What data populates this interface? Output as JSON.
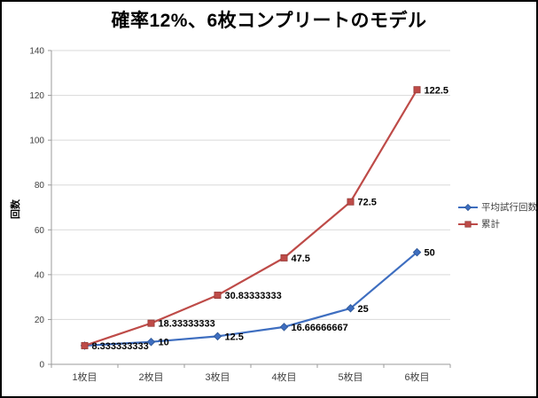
{
  "window": {
    "title": "確率12%、6枚コンプリートのモデル"
  },
  "chart_data": {
    "type": "line",
    "title": "確率12%、6枚コンプリートのモデル",
    "categories": [
      "1枚目",
      "2枚目",
      "3枚目",
      "4枚目",
      "5枚目",
      "6枚目"
    ],
    "series": [
      {
        "name": "平均試行回数",
        "color": "#3E6EC0",
        "marker_stroke": "#2E5694",
        "marker": "diamond",
        "values": [
          8.333333333,
          10,
          12.5,
          16.66666667,
          25,
          50
        ],
        "labels": [
          "",
          "10",
          "12.5",
          "16.66666667",
          "25",
          "50"
        ]
      },
      {
        "name": "累計",
        "color": "#BE4B48",
        "marker_stroke": "#953B38",
        "marker": "square",
        "values": [
          8.333333333,
          18.33333333,
          30.83333333,
          47.5,
          72.5,
          122.5
        ],
        "labels": [
          "8.333333333",
          "18.33333333",
          "30.83333333",
          "47.5",
          "72.5",
          "122.5"
        ]
      }
    ],
    "xlabel": "",
    "ylabel": "回数",
    "ylim": [
      0,
      140
    ],
    "yticks": [
      0,
      20,
      40,
      60,
      80,
      100,
      120,
      140
    ],
    "grid": true,
    "legend_position": "right"
  },
  "colors": {
    "grid": "#D9D9D9",
    "axis": "#9B9B9B",
    "tick_label": "#404040",
    "data_label": "#000000",
    "background": "#FFFFFF",
    "border": "#000000"
  }
}
